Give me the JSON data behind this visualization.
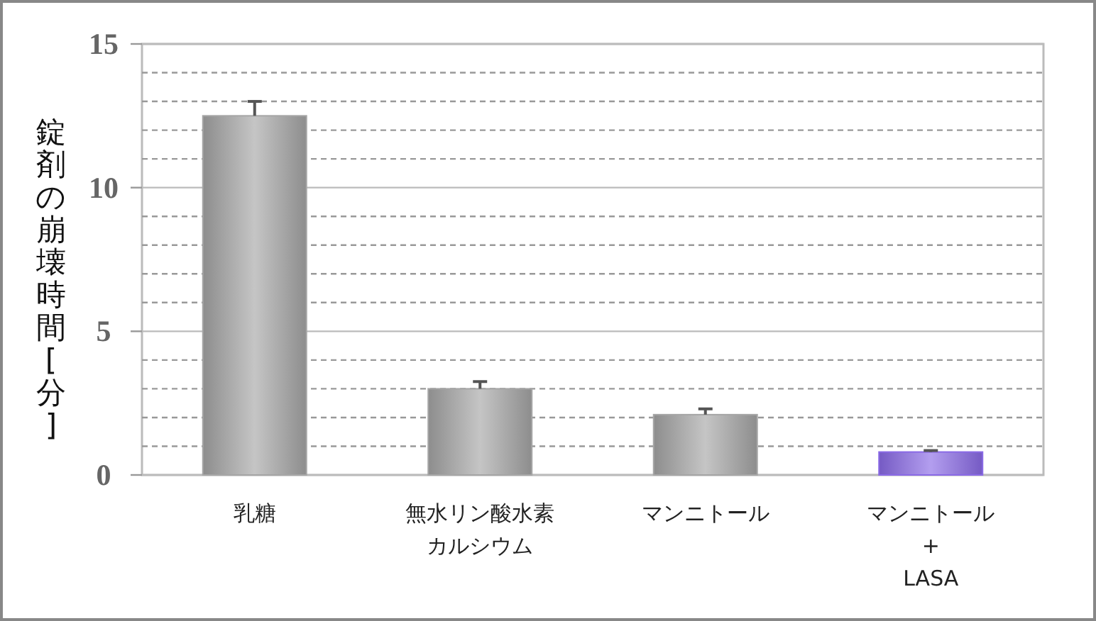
{
  "chart_data": {
    "type": "bar",
    "ylabel": "錠剤の崩壊時間[分]",
    "categories": [
      "乳糖",
      "無水リン酸水素カルシウム",
      "マンニトール",
      "マンニトール\n+\nLASA"
    ],
    "values": [
      12.5,
      3.0,
      2.1,
      0.8
    ],
    "colors": [
      "#a6a6a6",
      "#a6a6a6",
      "#a6a6a6",
      "#8a6ae6"
    ],
    "errors": [
      [
        12.5,
        13.0
      ],
      [
        3.0,
        3.25
      ],
      [
        2.1,
        2.3
      ],
      [
        0.8,
        0.85
      ]
    ],
    "ylim": [
      0,
      15
    ],
    "yticks": [
      0,
      {
        "value": 1,
        "label": null
      },
      {
        "value": 2,
        "label": null
      },
      {
        "value": 3,
        "label": null
      },
      {
        "value": 4,
        "label": null
      },
      5,
      {
        "value": 6,
        "label": null
      },
      {
        "value": 7,
        "label": null
      },
      {
        "value": 8,
        "label": null
      },
      {
        "value": 9,
        "label": null
      },
      10,
      {
        "value": 11,
        "label": null
      },
      {
        "value": 12,
        "label": null
      },
      {
        "value": 13,
        "label": null
      },
      {
        "value": 14,
        "label": null
      },
      15
    ],
    "grid": true
  }
}
